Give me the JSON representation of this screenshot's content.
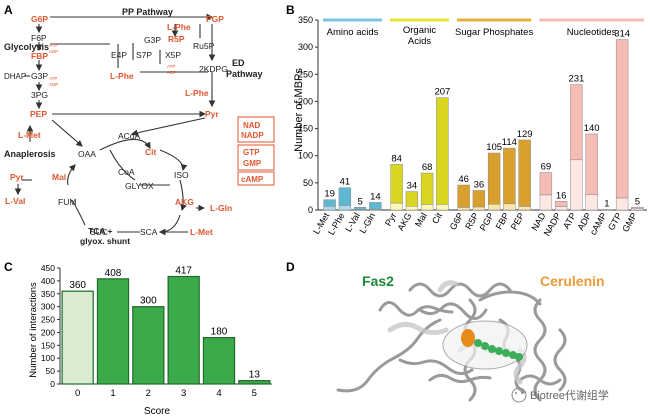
{
  "panels": {
    "a": "A",
    "b": "B",
    "c": "C",
    "d": "D"
  },
  "pathway": {
    "pp_pathway": "PP Pathway",
    "glycolysis": "Glycolysis",
    "ed_pathway_1": "ED",
    "ed_pathway_2": "Pathway",
    "anaplerosis": "Anaplerosis",
    "tca_1": "TCA +",
    "tca_2": "glyox. shunt",
    "atp": "ATP",
    "adp": "ADP",
    "nodes": {
      "g6p": "G6P",
      "f6p": "F6P",
      "fbp": "FBP",
      "dhap": "DHAP",
      "g3p_left": "G3P",
      "pg3": "3PG",
      "pep": "PEP",
      "pyr_main": "Pyr",
      "e4p": "E4P",
      "s7p": "S7P",
      "g3p_mid": "G3P",
      "x5p": "X5P",
      "r5p": "R5P",
      "ru5p": "Ru5P",
      "pgp": "PGP",
      "kdpg": "2KDPG",
      "lphe_top": "L-Phe",
      "lphe_mid": "L-Phe",
      "lphe_right": "L-Phe",
      "lmet_top": "L-Met",
      "acoa": "ACoA",
      "oaa": "OAA",
      "cit": "Cit",
      "coa": "CoA",
      "iso": "ISO",
      "glyox": "GLYOX",
      "mal": "Mal",
      "pyr_left": "Pyr",
      "lval": "L-Val",
      "fum": "FUM",
      "akg": "AKG",
      "lgln": "L-Gln",
      "suc": "SUC",
      "sca": "SCA",
      "lmet_bottom": "L-Met"
    },
    "cofactors": [
      "NAD",
      "NADP",
      "GTP",
      "GMP",
      "cAMP"
    ]
  },
  "chart_b": {
    "ylabel": "Number of MBPs",
    "groups": [
      "Amino acids",
      "Organic Acids",
      "Sugar Phosphates",
      "Nucleotides"
    ],
    "group_colors": [
      "#7ec3df",
      "#e6e434",
      "#e7b13e",
      "#f4bcb5"
    ]
  },
  "chart_c": {
    "ylabel": "Number of interactions",
    "xlabel": "Score"
  },
  "panel_d": {
    "fas2": "Fas2",
    "cerulenin": "Cerulenin",
    "watermark": "Biotree代谢组学"
  },
  "colors": {
    "accent_red": "#e0572f",
    "green_label": "#1a8a3a",
    "orange_label": "#e99a3a"
  },
  "chart_data": [
    {
      "type": "bar",
      "title": "",
      "ylabel": "Number of MBPs",
      "ylim": [
        0,
        350
      ],
      "yticks": [
        0,
        50,
        100,
        150,
        200,
        250,
        300,
        350
      ],
      "categories": [
        "L-Met",
        "L-Phe",
        "L-Val",
        "L-Gln",
        "Pyr",
        "AKG",
        "Mal",
        "Cit",
        "G6P",
        "R5P",
        "PGP",
        "FBP",
        "PEP",
        "NAD",
        "NADP",
        "ATP",
        "ADP",
        "cAMP",
        "GTP",
        "GMP"
      ],
      "values": [
        19,
        41,
        5,
        14,
        84,
        34,
        68,
        207,
        46,
        36,
        105,
        114,
        129,
        69,
        16,
        231,
        140,
        1,
        314,
        5
      ],
      "label_values": [
        "19",
        "41",
        "5",
        "14",
        "84",
        "34",
        "68",
        "207",
        "46",
        "36",
        "105",
        "114",
        "129",
        "69",
        "16",
        "231",
        "140",
        "1",
        "314",
        "5"
      ],
      "group_index": [
        0,
        0,
        0,
        0,
        1,
        1,
        1,
        1,
        2,
        2,
        2,
        2,
        2,
        3,
        3,
        3,
        3,
        3,
        3,
        3
      ],
      "light_fill": [
        "#a9dbec",
        "#fff9b8",
        "#fbe6b0",
        "#fde8e4"
      ],
      "dark_fill": [
        "#5fb7d1",
        "#d9d61f",
        "#d9a02d",
        "#f4bcb5"
      ],
      "light_portion": [
        0.35,
        0.2,
        0.2,
        0.1,
        0.15,
        0.2,
        0.15,
        0.05,
        0.1,
        0.15,
        0.1,
        0.1,
        0.05,
        0.4,
        0.4,
        0.4,
        0.2,
        1.0,
        0.07,
        0.6
      ]
    },
    {
      "type": "bar",
      "title": "",
      "xlabel": "Score",
      "ylabel": "Number of interactions",
      "ylim": [
        0,
        450
      ],
      "yticks": [
        0,
        50,
        100,
        150,
        200,
        250,
        300,
        350,
        400,
        450
      ],
      "categories": [
        "0",
        "1",
        "2",
        "3",
        "4",
        "5"
      ],
      "values": [
        360,
        408,
        300,
        417,
        180,
        13
      ],
      "label_values": [
        "360",
        "408",
        "300",
        "417",
        "180",
        "13"
      ],
      "fills": [
        "#d9ecd2",
        "#3caa4a",
        "#3caa4a",
        "#3caa4a",
        "#3caa4a",
        "#3caa4a"
      ]
    }
  ]
}
